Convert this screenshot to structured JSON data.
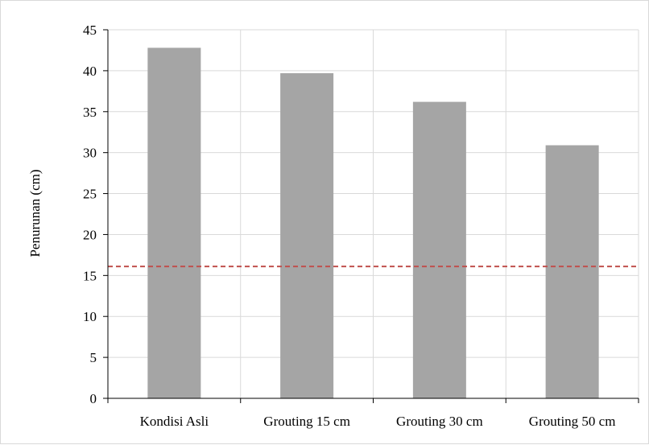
{
  "chart_data": {
    "type": "bar",
    "title": "",
    "xlabel": "",
    "ylabel": "Penurunan (cm)",
    "categories": [
      "Kondisi Asli",
      "Grouting 15 cm",
      "Grouting 30 cm",
      "Grouting 50 cm"
    ],
    "values": [
      42.8,
      39.7,
      36.2,
      30.9
    ],
    "ylim": [
      0,
      45
    ],
    "yticks": [
      "0",
      "5",
      "10",
      "15",
      "20",
      "25",
      "30",
      "35",
      "40",
      "45"
    ],
    "grid": true,
    "legend": "none",
    "reference_line": {
      "value": 16.1,
      "style": "dashed",
      "color": "#c0504d"
    },
    "colors": {
      "bar": "#a5a5a5",
      "grid": "#d9d9d9",
      "axis": "#000000"
    }
  }
}
